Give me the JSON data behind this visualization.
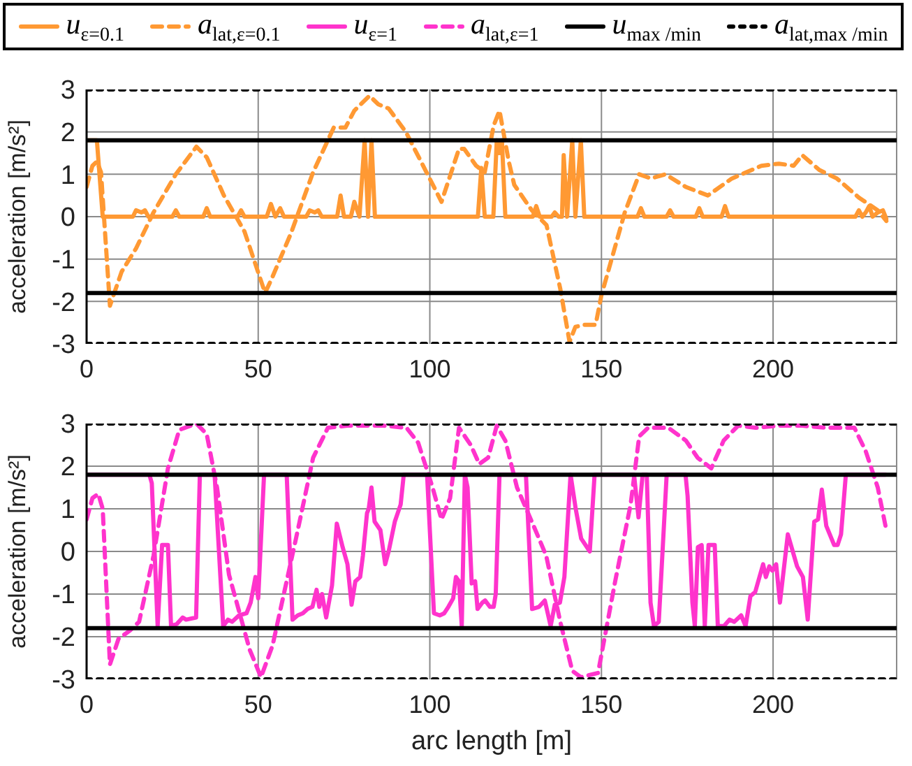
{
  "chart_data": [
    {
      "type": "line",
      "ylabel": "acceleration [m/s²]",
      "xlim": [
        0,
        236
      ],
      "xticks": [
        0,
        50,
        100,
        150,
        200
      ],
      "ylim": [
        -3,
        3
      ],
      "yticks": [
        -3,
        -2,
        -1,
        0,
        1,
        2,
        3
      ],
      "grid": true,
      "legend": "top",
      "marker": "none",
      "line_style": "solid",
      "series": [
        {
          "name": "u$_{ε=0.1}$",
          "color": "#ff9933",
          "x": [
            0,
            3,
            4.7,
            13.5,
            14.4,
            16,
            17,
            18,
            25,
            26,
            27,
            34,
            35,
            36,
            44,
            45,
            46,
            52.5,
            53.7,
            55,
            56.4,
            57.5,
            64,
            65,
            66.5,
            67.5,
            68.5,
            73,
            74,
            75,
            77,
            78,
            79.5,
            81,
            82,
            83,
            84,
            114,
            115,
            116,
            118.5,
            119.5,
            120.3,
            121,
            122,
            130,
            131,
            132,
            135.5,
            136.4,
            137.5,
            138.5,
            139,
            140,
            141.5,
            142.4,
            144,
            145,
            160.5,
            161.5,
            162.5,
            169,
            170,
            171,
            177.5,
            178.5,
            179.5,
            185,
            186,
            187,
            224,
            225,
            226,
            227,
            228,
            229,
            230.5,
            232,
            233
          ],
          "values": [
            1.8,
            1.8,
            0,
            0,
            0.15,
            0.1,
            0.15,
            0,
            0,
            0.15,
            0,
            0,
            0.2,
            0,
            0,
            0.15,
            0,
            0,
            0.3,
            0,
            0.2,
            0,
            0,
            0.15,
            0.1,
            0.15,
            0,
            0,
            0.5,
            0,
            0,
            0.35,
            0,
            1.8,
            0,
            1.8,
            0,
            0,
            1.15,
            0,
            0,
            1.8,
            1.5,
            1.8,
            0,
            0,
            0.25,
            0,
            0,
            0.1,
            0,
            0,
            1.45,
            0,
            1.8,
            0,
            1.8,
            0,
            0,
            0.2,
            0,
            0,
            0.15,
            0,
            0,
            0.2,
            0,
            0,
            0.25,
            0,
            0,
            0.15,
            0,
            0.1,
            0.25,
            0,
            0.1,
            0.15,
            -0.05
          ]
        },
        {
          "name": "a$_{lat,ε=0.1}$",
          "color": "#ff9933",
          "line_style": "dashed",
          "x": [
            0,
            1.7,
            3,
            4.2,
            6.8,
            10.2,
            14.4,
            19.5,
            26,
            32,
            35,
            40,
            46,
            52,
            54,
            59.5,
            66,
            72,
            75.4,
            78,
            82.4,
            85,
            88,
            93,
            99,
            103.4,
            108.5,
            110,
            113.5,
            116,
            118.6,
            120.3,
            123,
            124.6,
            129.7,
            134,
            138,
            140.7,
            142.4,
            145,
            148.3,
            150,
            156.8,
            161,
            164.4,
            168.6,
            174.6,
            181,
            188,
            196.6,
            201.7,
            206,
            208.5,
            213.5,
            218.6,
            225,
            230.5,
            233
          ],
          "values": [
            0.7,
            1.2,
            1.3,
            1.05,
            -2.1,
            -1.3,
            -0.75,
            0.1,
            1.0,
            1.65,
            1.4,
            0.5,
            -0.35,
            -1.8,
            -1.45,
            -0.4,
            1.05,
            2.1,
            2.1,
            2.5,
            2.85,
            2.65,
            2.55,
            2.0,
            1.05,
            0.35,
            1.6,
            1.6,
            1.2,
            1.05,
            2.15,
            2.5,
            1.3,
            0.75,
            0.15,
            -0.2,
            -1.7,
            -2.95,
            -2.6,
            -2.55,
            -2.55,
            -1.85,
            0.1,
            1.0,
            0.9,
            1.0,
            0.7,
            0.5,
            0.9,
            1.2,
            1.25,
            1.2,
            1.45,
            1.1,
            0.9,
            0.45,
            0.15,
            -0.1
          ]
        },
        {
          "color": "#000000",
          "x": [
            0,
            236
          ],
          "values": [
            1.8,
            1.8
          ]
        },
        {
          "color": "#000000",
          "x": [
            0,
            236
          ],
          "values": [
            -1.8,
            -1.8
          ]
        },
        {
          "color": "#000000",
          "line_style": "dotted",
          "x": [
            0,
            236
          ],
          "values": [
            3,
            3
          ]
        },
        {
          "color": "#000000",
          "line_style": "dotted",
          "x": [
            0,
            236
          ],
          "values": [
            -3,
            -3
          ]
        }
      ]
    },
    {
      "type": "line",
      "xlabel": "arc length [m]",
      "ylabel": "acceleration [m/s²]",
      "xlim": [
        0,
        236
      ],
      "xticks": [
        0,
        50,
        100,
        150,
        200
      ],
      "ylim": [
        -3,
        3
      ],
      "yticks": [
        -3,
        -2,
        -1,
        0,
        1,
        2,
        3
      ],
      "grid": true,
      "legend": "top",
      "marker": "none",
      "line_style": "solid",
      "series": [
        {
          "name": "u$_{ε=1}$",
          "color": "#ff33cc",
          "x": [
            0,
            18.3,
            19,
            20.7,
            22,
            23.7,
            24.6,
            26.3,
            28,
            29,
            31.9,
            33,
            37.3,
            39.8,
            41.2,
            42.4,
            44.4,
            46.6,
            47.8,
            49.2,
            50,
            51.7,
            58.3,
            60,
            61.5,
            63,
            64.4,
            65.8,
            67,
            67.8,
            68.6,
            69.8,
            71.5,
            72.9,
            74.6,
            76,
            77.2,
            78.3,
            79.7,
            80.5,
            81.7,
            82.2,
            83,
            83.9,
            85.6,
            87,
            88,
            89.8,
            91.5,
            92.4,
            99.2,
            101.2,
            102.9,
            104.2,
            105.4,
            106.8,
            107.6,
            108.5,
            109.3,
            110.2,
            111,
            112.2,
            113.2,
            113.9,
            115.3,
            116.1,
            117.5,
            118.6,
            119.2,
            120.3,
            128,
            129.8,
            131.8,
            133.5,
            135.2,
            136.4,
            137.9,
            139.2,
            141,
            142.5,
            144.1,
            146.6,
            148,
            159.5,
            160.8,
            162,
            163.2,
            164.3,
            165.3,
            166.7,
            169,
            174.5,
            175.1,
            176.5,
            177.2,
            178.1,
            179.2,
            180.1,
            181.2,
            183,
            183.9,
            185.7,
            187.3,
            188.7,
            190.7,
            192,
            193.4,
            194.8,
            197.1,
            197.9,
            198.9,
            199.8,
            200.9,
            202,
            204.3,
            207,
            208.7,
            210.1,
            212,
            213.1,
            214.2,
            215.5,
            217.8,
            218.8,
            219.8,
            221.2,
            232.7
          ],
          "values": [
            1.8,
            1.8,
            1.6,
            -1.75,
            0.15,
            0.15,
            -1.75,
            -1.7,
            -1.55,
            -1.6,
            -1.55,
            1.8,
            1.8,
            -1.75,
            -1.6,
            -1.65,
            -1.5,
            -1.45,
            -1.2,
            -0.6,
            -1.1,
            1.8,
            1.8,
            -1.6,
            -1.5,
            -1.45,
            -1.35,
            -1.3,
            -0.9,
            -1.3,
            -1.0,
            -1.55,
            -0.8,
            0.65,
            0.1,
            -0.3,
            -1.25,
            -0.7,
            -0.6,
            -0.1,
            0.9,
            1.0,
            1.5,
            0.7,
            0.5,
            -0.3,
            0.0,
            0.7,
            1.1,
            1.8,
            1.8,
            -1.45,
            -1.5,
            -1.45,
            -1.3,
            -1.1,
            -0.6,
            -0.7,
            -1.75,
            1.8,
            1.5,
            -0.75,
            -0.7,
            -1.35,
            -1.2,
            -1.15,
            -1.3,
            -1.3,
            -1.0,
            1.8,
            1.8,
            -1.35,
            -1.3,
            -1.15,
            -1.75,
            -1.25,
            -1.2,
            -0.6,
            1.8,
            1.0,
            0.3,
            0.0,
            1.8,
            1.8,
            0.8,
            1.8,
            1.8,
            -1.2,
            -1.75,
            -1.65,
            1.8,
            1.8,
            1.3,
            -1.2,
            -1.75,
            0.1,
            0.15,
            -1.75,
            0.15,
            0.15,
            -1.75,
            -1.75,
            -1.6,
            -1.65,
            -1.5,
            -1.75,
            -1.05,
            -0.95,
            -0.3,
            -0.6,
            -0.35,
            -0.45,
            -0.3,
            -1.2,
            0.4,
            -0.35,
            -0.6,
            -1.6,
            0.7,
            0.75,
            1.45,
            0.6,
            0.15,
            0.15,
            0.4,
            1.8,
            1.8
          ]
        },
        {
          "name": "a$_{lat,ε=1}$",
          "color": "#ff33cc",
          "line_style": "dashed",
          "x": [
            0,
            1.7,
            3.4,
            4.7,
            6.8,
            9.3,
            12.7,
            15.3,
            19.5,
            23.7,
            27,
            32,
            35,
            38,
            41.5,
            47.5,
            50.8,
            54.2,
            61,
            66,
            70.3,
            76,
            86.4,
            93.2,
            96.6,
            100.8,
            103.4,
            105.9,
            108.5,
            111.9,
            114.4,
            117,
            119.5,
            122,
            125.4,
            130.5,
            133.9,
            138,
            141.5,
            144,
            149,
            154,
            158.5,
            161,
            163.6,
            169.5,
            174.6,
            178,
            182,
            185.6,
            189.8,
            194.9,
            201.7,
            208.5,
            215.3,
            223.7,
            227,
            230.5,
            233
          ],
          "values": [
            0.75,
            1.25,
            1.35,
            1.0,
            -2.65,
            -2.05,
            -1.85,
            -1.65,
            -0.1,
            1.95,
            2.85,
            3.0,
            2.75,
            1.5,
            -0.55,
            -2.3,
            -2.95,
            -2.2,
            0.3,
            2.2,
            2.9,
            2.95,
            2.95,
            2.9,
            2.55,
            1.5,
            0.75,
            1.25,
            2.9,
            2.5,
            2.05,
            2.2,
            2.95,
            2.6,
            1.5,
            0.55,
            -0.1,
            -1.65,
            -2.8,
            -2.95,
            -2.85,
            -0.7,
            1.1,
            2.7,
            2.9,
            2.9,
            2.6,
            2.2,
            1.95,
            2.6,
            2.95,
            2.9,
            2.95,
            2.95,
            2.9,
            2.9,
            2.35,
            1.5,
            0.5
          ]
        },
        {
          "name": "u$_{max /min}$",
          "color": "#000000",
          "x": [
            0,
            236
          ],
          "values": [
            1.8,
            1.8
          ]
        },
        {
          "color": "#000000",
          "x": [
            0,
            236
          ],
          "values": [
            -1.8,
            -1.8
          ]
        },
        {
          "name": "a$_{lat,max /min}$",
          "color": "#000000",
          "line_style": "dotted",
          "x": [
            0,
            236
          ],
          "values": [
            3,
            3
          ]
        },
        {
          "color": "#000000",
          "line_style": "dotted",
          "x": [
            0,
            236
          ],
          "values": [
            -3,
            -3
          ]
        }
      ]
    }
  ]
}
